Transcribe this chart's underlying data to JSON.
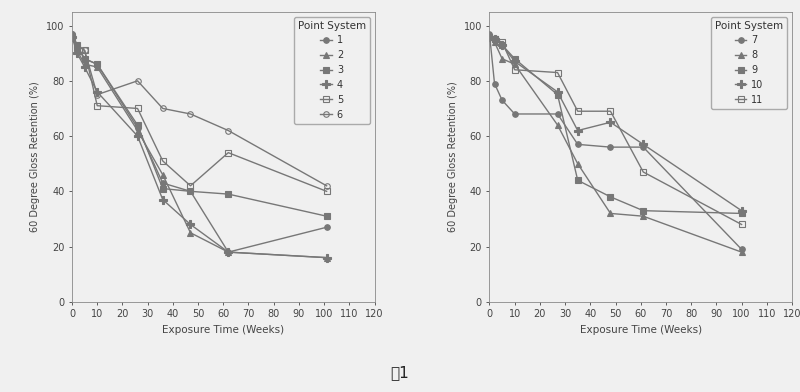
{
  "left_chart": {
    "title": "Point System",
    "xlabel": "Exposure Time (Weeks)",
    "ylabel": "60 Degree Gloss Retention (%)",
    "xlim": [
      0,
      120
    ],
    "ylim": [
      0,
      105
    ],
    "xticks": [
      0,
      10,
      20,
      30,
      40,
      50,
      60,
      70,
      80,
      90,
      100,
      110,
      120
    ],
    "yticks": [
      0,
      20,
      40,
      60,
      80,
      100
    ],
    "series": [
      {
        "label": "1",
        "marker": "o",
        "fillstyle": "full",
        "x": [
          0,
          2,
          5,
          10,
          26,
          36,
          47,
          62,
          101
        ],
        "y": [
          97,
          93,
          88,
          86,
          63,
          43,
          40,
          18,
          27
        ]
      },
      {
        "label": "2",
        "marker": "^",
        "fillstyle": "full",
        "x": [
          0,
          2,
          5,
          10,
          26,
          36,
          47,
          62,
          101
        ],
        "y": [
          97,
          91,
          86,
          85,
          62,
          46,
          25,
          18,
          16
        ]
      },
      {
        "label": "3",
        "marker": "s",
        "fillstyle": "full",
        "x": [
          0,
          2,
          5,
          10,
          26,
          36,
          47,
          62,
          101
        ],
        "y": [
          96,
          92,
          88,
          86,
          64,
          41,
          40,
          39,
          31
        ]
      },
      {
        "label": "4",
        "marker": "P",
        "fillstyle": "full",
        "x": [
          0,
          2,
          5,
          10,
          26,
          36,
          47,
          62,
          101
        ],
        "y": [
          96,
          90,
          85,
          76,
          60,
          37,
          28,
          18,
          16
        ]
      },
      {
        "label": "5",
        "marker": "s",
        "fillstyle": "none",
        "x": [
          0,
          2,
          5,
          10,
          26,
          36,
          47,
          62,
          101
        ],
        "y": [
          96,
          93,
          91,
          71,
          70,
          51,
          42,
          54,
          40
        ]
      },
      {
        "label": "6",
        "marker": "o",
        "fillstyle": "none",
        "x": [
          0,
          2,
          5,
          10,
          26,
          36,
          47,
          62,
          101
        ],
        "y": [
          97,
          93,
          91,
          75,
          80,
          70,
          68,
          62,
          42
        ]
      }
    ]
  },
  "right_chart": {
    "title": "Point System",
    "xlabel": "Exposure Time (Weeks)",
    "ylabel": "60 Degree Gloss Retention (%)",
    "xlim": [
      0,
      120
    ],
    "ylim": [
      0,
      105
    ],
    "xticks": [
      0,
      10,
      20,
      30,
      40,
      50,
      60,
      70,
      80,
      90,
      100,
      110,
      120
    ],
    "yticks": [
      0,
      20,
      40,
      60,
      80,
      100
    ],
    "series": [
      {
        "label": "7",
        "marker": "o",
        "fillstyle": "full",
        "x": [
          0,
          2,
          5,
          10,
          27,
          35,
          48,
          61,
          100
        ],
        "y": [
          97,
          79,
          73,
          68,
          68,
          57,
          56,
          56,
          19
        ]
      },
      {
        "label": "8",
        "marker": "^",
        "fillstyle": "full",
        "x": [
          0,
          2,
          5,
          10,
          27,
          35,
          48,
          61,
          100
        ],
        "y": [
          96,
          94,
          88,
          86,
          64,
          50,
          32,
          31,
          18
        ]
      },
      {
        "label": "9",
        "marker": "s",
        "fillstyle": "full",
        "x": [
          0,
          2,
          5,
          10,
          27,
          35,
          48,
          61,
          100
        ],
        "y": [
          96,
          95,
          93,
          88,
          75,
          44,
          38,
          33,
          32
        ]
      },
      {
        "label": "10",
        "marker": "P",
        "fillstyle": "full",
        "x": [
          0,
          2,
          5,
          10,
          27,
          35,
          48,
          61,
          100
        ],
        "y": [
          96,
          95,
          93,
          87,
          76,
          62,
          65,
          57,
          33
        ]
      },
      {
        "label": "11",
        "marker": "s",
        "fillstyle": "none",
        "x": [
          0,
          2,
          5,
          10,
          27,
          35,
          48,
          61,
          100
        ],
        "y": [
          96,
          95,
          94,
          84,
          83,
          69,
          69,
          47,
          28
        ]
      }
    ]
  },
  "color": "#777777",
  "linewidth": 1.0,
  "markersize": 4,
  "background_color": "#f0f0f0",
  "plot_bg": "#f0f0f0",
  "caption": "图1",
  "caption_fontsize": 11,
  "tick_labelsize": 7,
  "xlabel_fontsize": 7.5,
  "ylabel_fontsize": 7,
  "legend_title_fontsize": 7.5,
  "legend_fontsize": 7,
  "legend_loc": "upper right"
}
